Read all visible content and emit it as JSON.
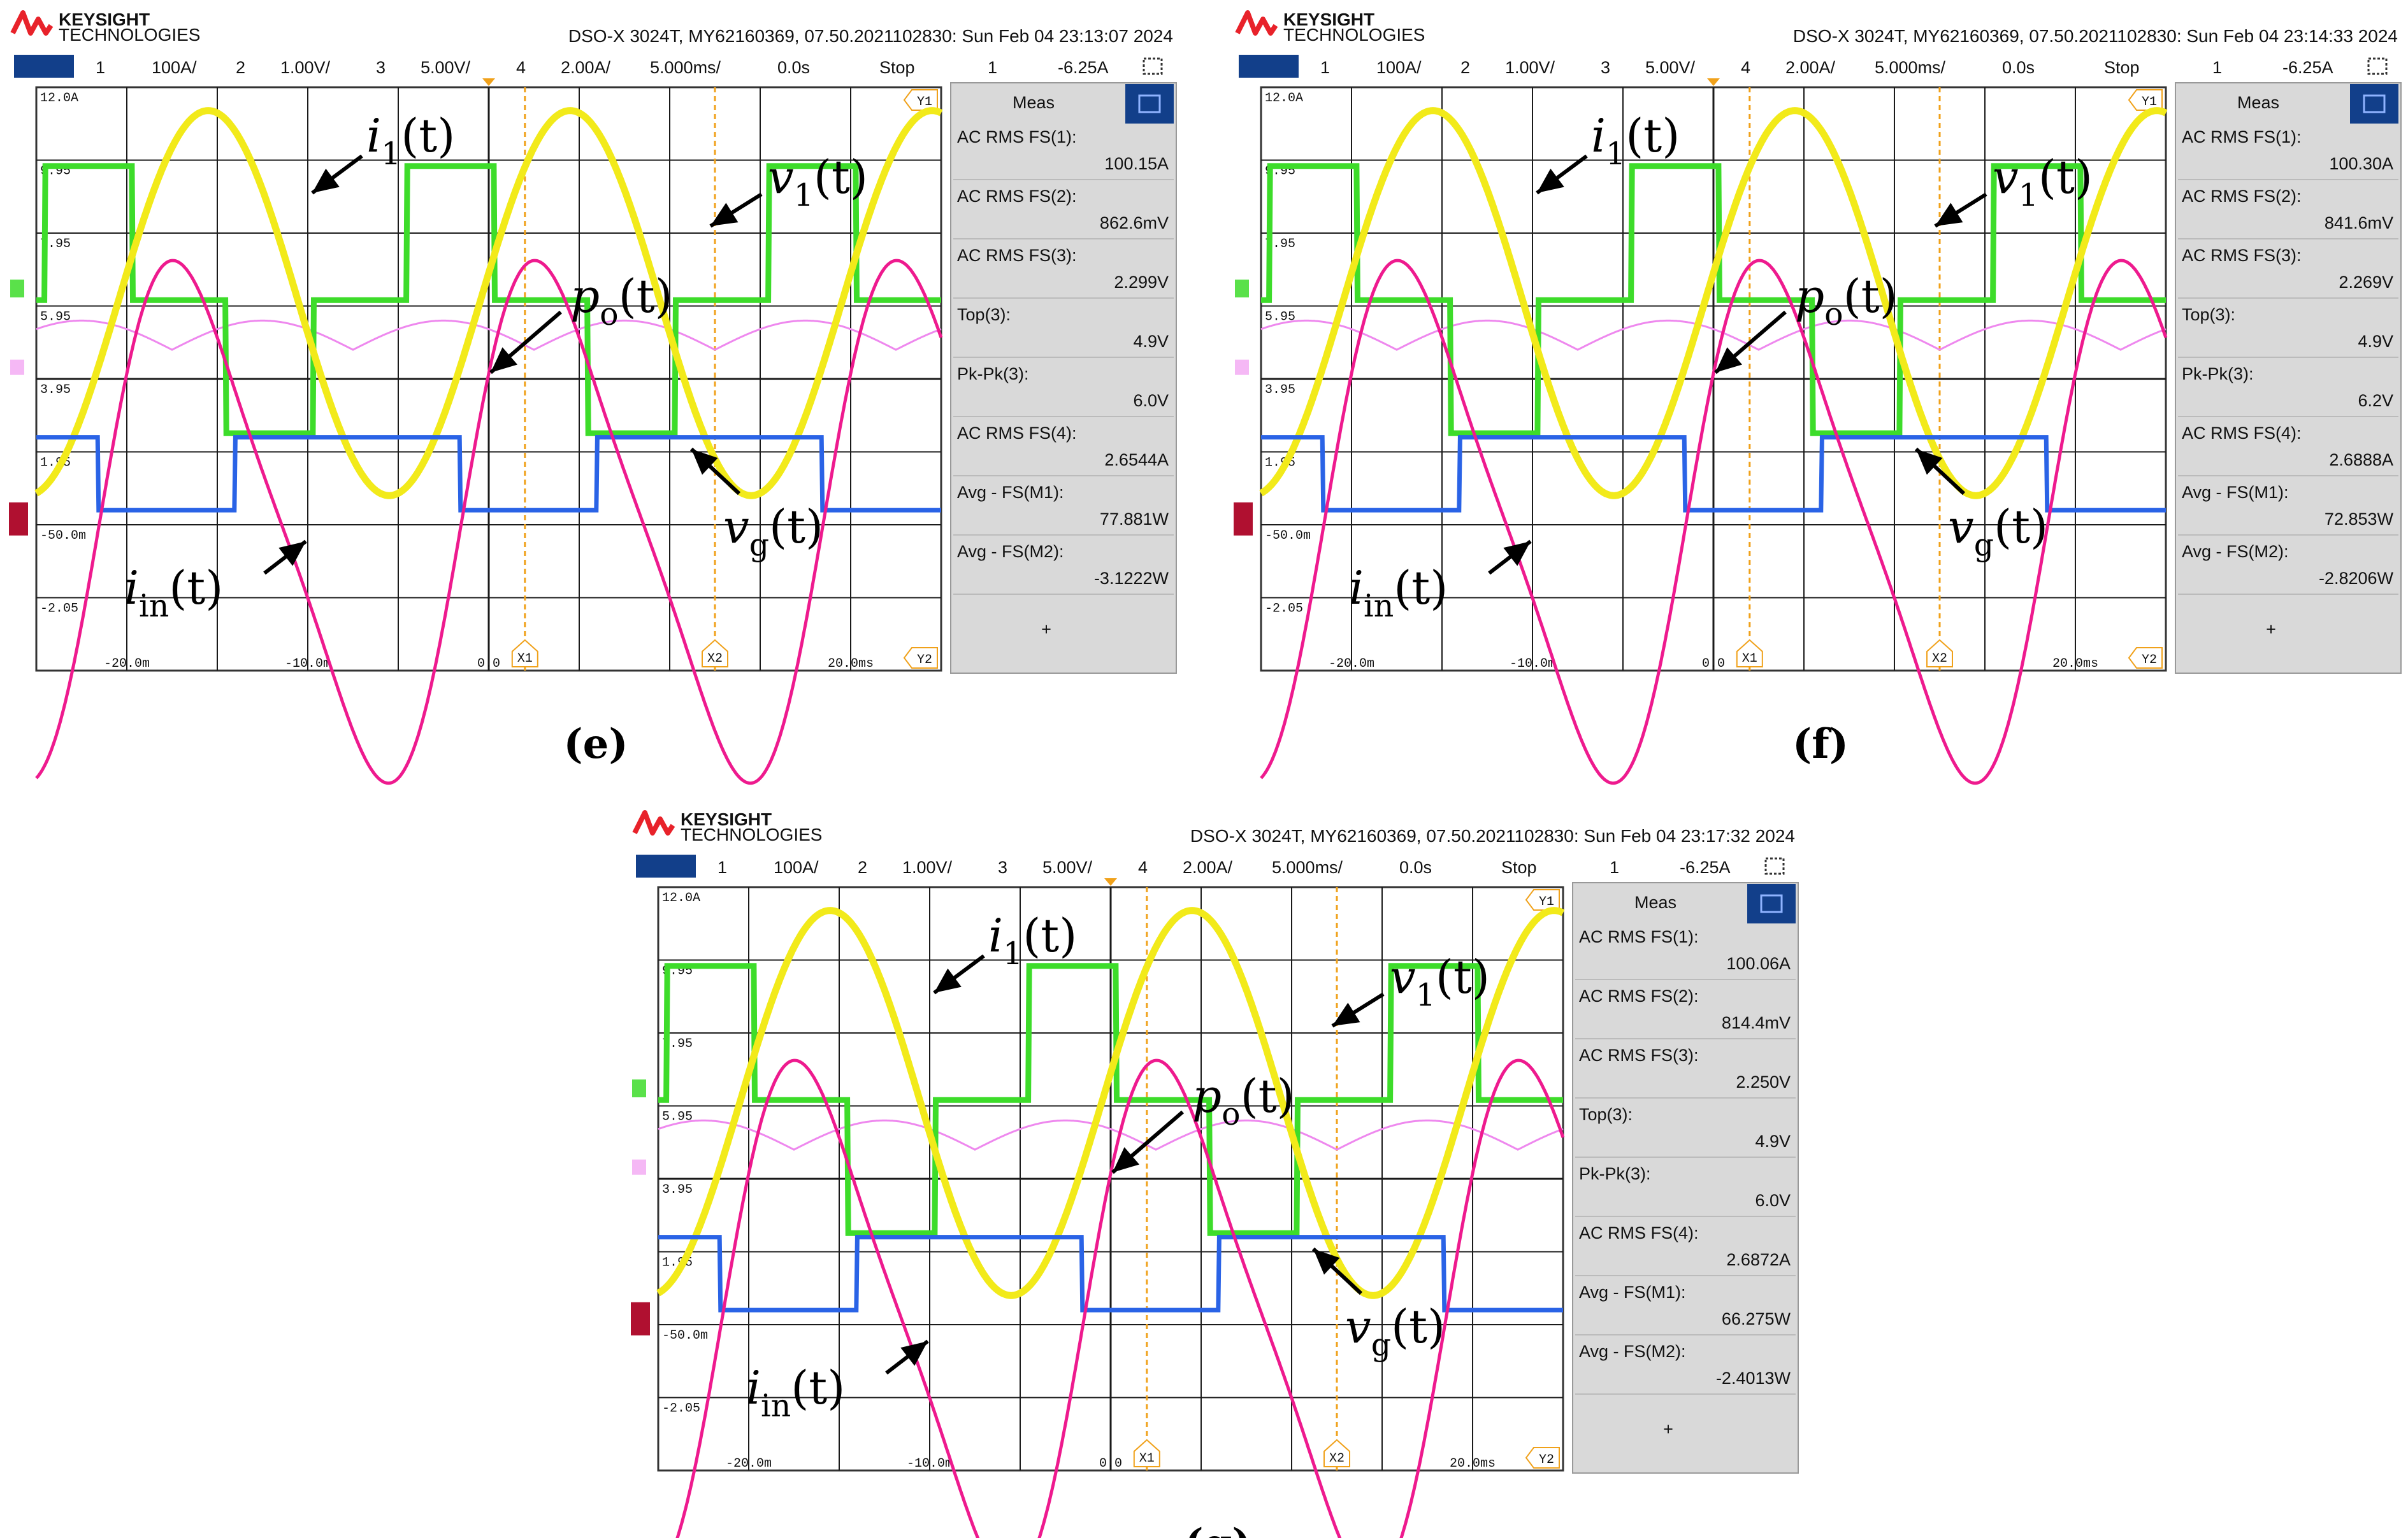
{
  "colors": {
    "ch1": "#f2ea1a",
    "ch2": "#3ddc2a",
    "ch3": "#2a63e6",
    "ch4": "#ee1a8e",
    "math": "#ee88ee",
    "grid": "#1a1a1a",
    "cursor": "#f0a11a",
    "brand": "#e8222a",
    "header_bar": "#123f8a"
  },
  "common": {
    "brand_name": "KEYSIGHT",
    "brand_sub": "TECHNOLOGIES",
    "ch1_num": "1",
    "ch1_scale": "100A/",
    "ch2_num": "2",
    "ch2_scale": "1.00V/",
    "ch3_num": "3",
    "ch3_scale": "5.00V/",
    "ch4_num": "4",
    "ch4_scale": "2.00A/",
    "timebase": "5.000ms/",
    "delay": "0.0s",
    "run_state": "Stop",
    "trig_src": "1",
    "trig_level": "-6.25A",
    "meas_title": "Meas",
    "meas_add": "+",
    "y_ticks": [
      "12.0A",
      "9.95",
      "7.95",
      "5.95",
      "3.95",
      "1.95",
      "-50.0m",
      "-2.05"
    ],
    "x_ticks": [
      "-20.0m",
      "-10.0m",
      "0.0",
      "",
      "20.0ms"
    ],
    "cursor_x1": "X1",
    "cursor_x2": "X2",
    "cursor_y1": "Y1",
    "cursor_y2": "Y2"
  },
  "chart_data": [
    {
      "type": "line",
      "caption": "(e)",
      "header": "DSO-X 3024T, MY62160369, 07.50.2021102830: Sun Feb 04 23:13:07 2024",
      "xlim": [
        -25,
        25
      ],
      "x_units": "ms",
      "series": [
        {
          "name": "i1(t)",
          "channel": "1",
          "waveform": "sine",
          "ac_rms": "100.15A"
        },
        {
          "name": "v1(t)",
          "channel": "2",
          "waveform": "quasi-square",
          "ac_rms": "862.6mV"
        },
        {
          "name": "vg(t)",
          "channel": "3",
          "waveform": "square",
          "ac_rms": "2.299V",
          "top": "4.9V",
          "pk_pk": "6.0V"
        },
        {
          "name": "iin(t)",
          "channel": "4",
          "waveform": "distorted-sine",
          "ac_rms": "2.6544A"
        },
        {
          "name": "po(t)",
          "channel": "M",
          "waveform": "power-arcs"
        }
      ],
      "annotations": [
        "i_1(t)",
        "v_1(t)",
        "p_o(t)",
        "v_g(t)",
        "i_in(t)"
      ],
      "measurements": [
        {
          "label": "AC RMS FS(1):",
          "value": "100.15A"
        },
        {
          "label": "AC RMS FS(2):",
          "value": "862.6mV"
        },
        {
          "label": "AC RMS FS(3):",
          "value": "2.299V"
        },
        {
          "label": "Top(3):",
          "value": "4.9V"
        },
        {
          "label": "Pk-Pk(3):",
          "value": "6.0V"
        },
        {
          "label": "AC RMS FS(4):",
          "value": "2.6544A"
        },
        {
          "label": "Avg - FS(M1):",
          "value": "77.881W"
        },
        {
          "label": "Avg - FS(M2):",
          "value": "-3.1222W"
        }
      ]
    },
    {
      "type": "line",
      "caption": "(f)",
      "header": "DSO-X 3024T, MY62160369, 07.50.2021102830: Sun Feb 04 23:14:33 2024",
      "xlim": [
        -25,
        25
      ],
      "x_units": "ms",
      "series": [
        {
          "name": "i1(t)",
          "channel": "1",
          "waveform": "sine",
          "ac_rms": "100.30A"
        },
        {
          "name": "v1(t)",
          "channel": "2",
          "waveform": "quasi-square",
          "ac_rms": "841.6mV"
        },
        {
          "name": "vg(t)",
          "channel": "3",
          "waveform": "square",
          "ac_rms": "2.269V",
          "top": "4.9V",
          "pk_pk": "6.2V"
        },
        {
          "name": "iin(t)",
          "channel": "4",
          "waveform": "distorted-sine",
          "ac_rms": "2.6888A"
        },
        {
          "name": "po(t)",
          "channel": "M",
          "waveform": "power-arcs"
        }
      ],
      "annotations": [
        "i_1(t)",
        "v_1(t)",
        "p_o(t)",
        "v_g(t)",
        "i_in(t)"
      ],
      "measurements": [
        {
          "label": "AC RMS FS(1):",
          "value": "100.30A"
        },
        {
          "label": "AC RMS FS(2):",
          "value": "841.6mV"
        },
        {
          "label": "AC RMS FS(3):",
          "value": "2.269V"
        },
        {
          "label": "Top(3):",
          "value": "4.9V"
        },
        {
          "label": "Pk-Pk(3):",
          "value": "6.2V"
        },
        {
          "label": "AC RMS FS(4):",
          "value": "2.6888A"
        },
        {
          "label": "Avg - FS(M1):",
          "value": "72.853W"
        },
        {
          "label": "Avg - FS(M2):",
          "value": "-2.8206W"
        }
      ]
    },
    {
      "type": "line",
      "caption": "(g)",
      "header": "DSO-X 3024T, MY62160369, 07.50.2021102830: Sun Feb 04 23:17:32 2024",
      "xlim": [
        -25,
        25
      ],
      "x_units": "ms",
      "series": [
        {
          "name": "i1(t)",
          "channel": "1",
          "waveform": "sine",
          "ac_rms": "100.06A"
        },
        {
          "name": "v1(t)",
          "channel": "2",
          "waveform": "quasi-square",
          "ac_rms": "814.4mV"
        },
        {
          "name": "vg(t)",
          "channel": "3",
          "waveform": "square",
          "ac_rms": "2.250V",
          "top": "4.9V",
          "pk_pk": "6.0V"
        },
        {
          "name": "iin(t)",
          "channel": "4",
          "waveform": "distorted-sine",
          "ac_rms": "2.6872A"
        },
        {
          "name": "po(t)",
          "channel": "M",
          "waveform": "power-arcs"
        }
      ],
      "annotations": [
        "i_1(t)",
        "v_1(t)",
        "p_o(t)",
        "v_g(t)",
        "i_in(t)"
      ],
      "measurements": [
        {
          "label": "AC RMS FS(1):",
          "value": "100.06A"
        },
        {
          "label": "AC RMS FS(2):",
          "value": "814.4mV"
        },
        {
          "label": "AC RMS FS(3):",
          "value": "2.250V"
        },
        {
          "label": "Top(3):",
          "value": "4.9V"
        },
        {
          "label": "Pk-Pk(3):",
          "value": "6.0V"
        },
        {
          "label": "AC RMS FS(4):",
          "value": "2.6872A"
        },
        {
          "label": "Avg - FS(M1):",
          "value": "66.275W"
        },
        {
          "label": "Avg - FS(M2):",
          "value": "-2.4013W"
        }
      ]
    }
  ]
}
